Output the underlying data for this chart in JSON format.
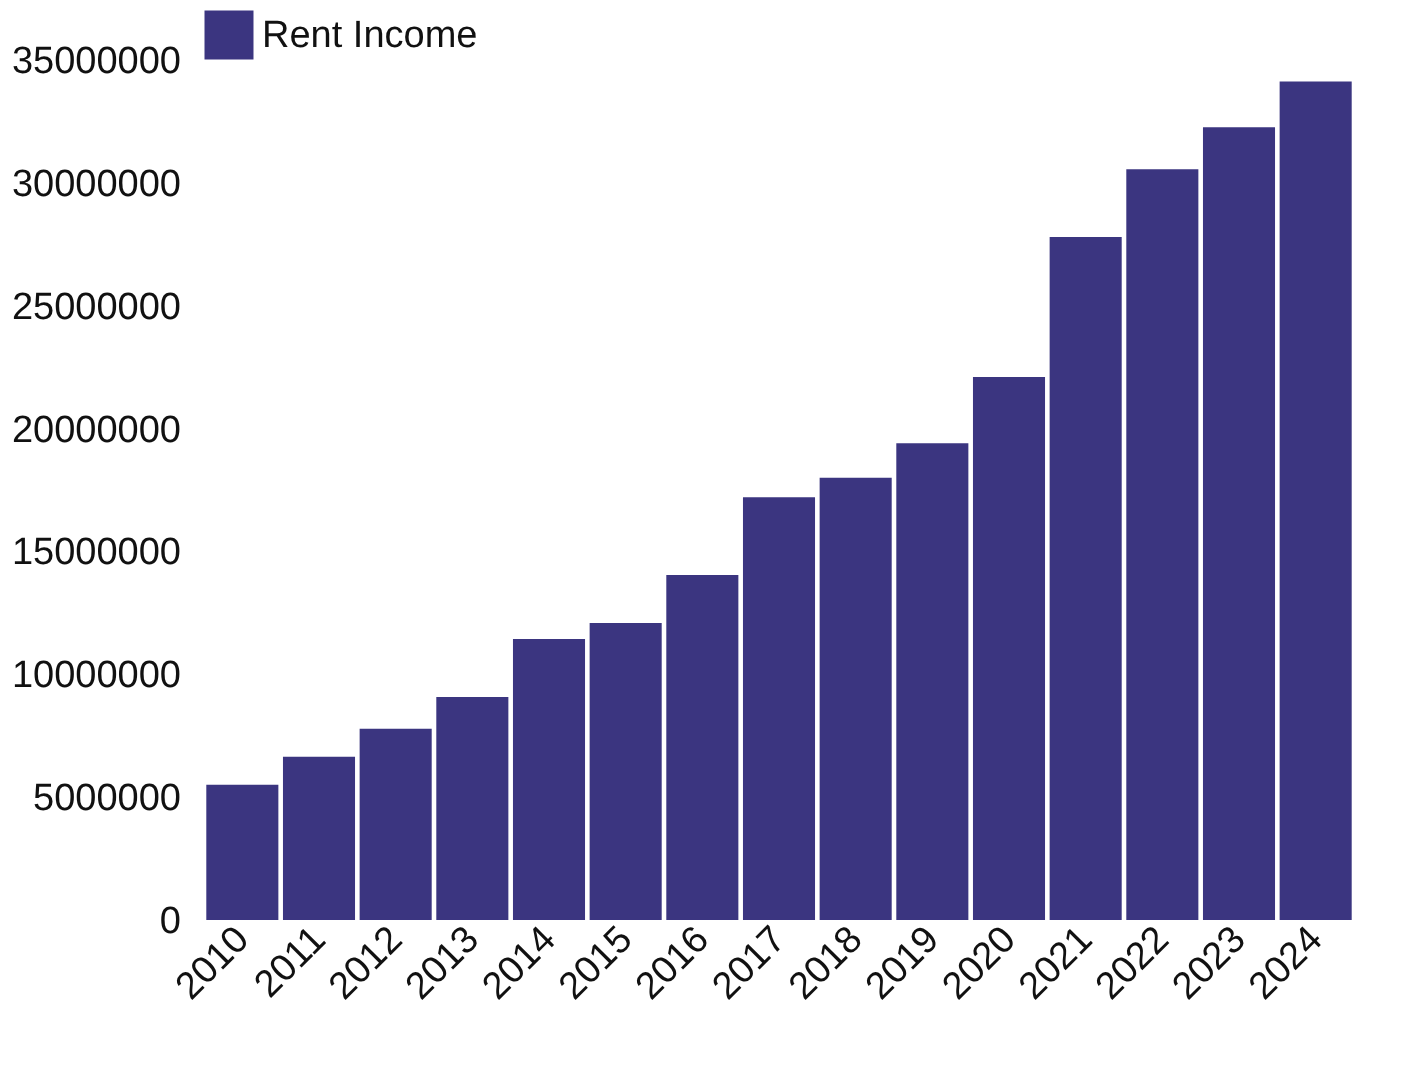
{
  "chart_data": {
    "type": "bar",
    "categories": [
      "2010",
      "2011",
      "2012",
      "2013",
      "2014",
      "2015",
      "2016",
      "2017",
      "2018",
      "2019",
      "2020",
      "2021",
      "2022",
      "2023",
      "2024"
    ],
    "series": [
      {
        "name": "Rent Income",
        "color": "#3b3580",
        "values": [
          5500000,
          6640000,
          7780000,
          9080000,
          11440000,
          12090000,
          14040000,
          17200000,
          18000000,
          19400000,
          22100000,
          27800000,
          30550000,
          32260000,
          34130000
        ]
      }
    ],
    "ylim": [
      0,
      35000000
    ],
    "yticks": [
      0,
      5000000,
      10000000,
      15000000,
      20000000,
      25000000,
      30000000,
      35000000
    ],
    "grid": false,
    "legend": "top"
  }
}
